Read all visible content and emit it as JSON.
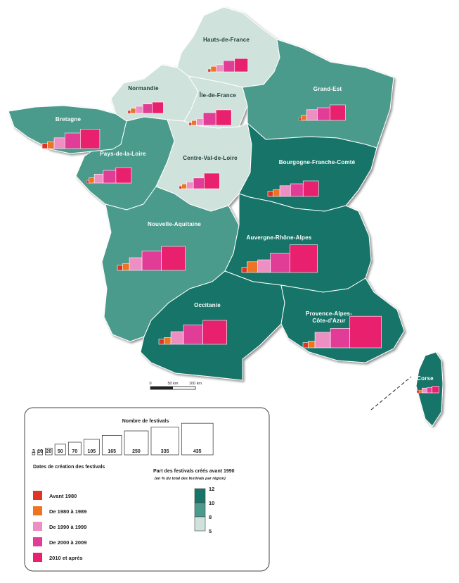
{
  "colors": {
    "c12": "#187468",
    "c10": "#4b9b8c",
    "c8": "#cfe3dc",
    "date": [
      "#e03426",
      "#ee7424",
      "#ee8fc4",
      "#e23d96",
      "#e8206e"
    ],
    "border": "#ffffff"
  },
  "regions": [
    {
      "id": "hauts-de-france",
      "name": "Hauts-de-France",
      "share_class": 8,
      "counts": [
        3,
        12,
        20,
        50,
        70
      ]
    },
    {
      "id": "normandie",
      "name": "Normandie",
      "share_class": 8,
      "counts": [
        3,
        10,
        20,
        35,
        50
      ]
    },
    {
      "id": "ile-de-france",
      "name": "Île-de-France",
      "share_class": 8,
      "counts": [
        3,
        10,
        20,
        70,
        105
      ]
    },
    {
      "id": "grand-est",
      "name": "Grand-Est",
      "share_class": 10,
      "counts": [
        3,
        12,
        50,
        70,
        105
      ]
    },
    {
      "id": "bretagne",
      "name": "Bretagne",
      "share_class": 10,
      "counts": [
        12,
        20,
        50,
        105,
        165
      ]
    },
    {
      "id": "pays-de-la-loire",
      "name": "Pays-de-la-Loire",
      "share_class": 10,
      "counts": [
        3,
        12,
        35,
        70,
        105
      ]
    },
    {
      "id": "centre-val-de-loire",
      "name": "Centre-Val-de-Loire",
      "share_class": 8,
      "counts": [
        3,
        10,
        20,
        50,
        105
      ]
    },
    {
      "id": "bourgogne-franche-comte",
      "name": "Bourgogne-Franche-Comté",
      "share_class": 12,
      "counts": [
        12,
        20,
        50,
        70,
        105
      ]
    },
    {
      "id": "nouvelle-aquitaine",
      "name": "Nouvelle-Aquitaine",
      "share_class": 10,
      "counts": [
        12,
        20,
        70,
        165,
        250
      ]
    },
    {
      "id": "auvergne-rhone-alpes",
      "name": "Auvergne-Rhône-Alpes",
      "share_class": 12,
      "counts": [
        12,
        50,
        70,
        165,
        335
      ]
    },
    {
      "id": "occitanie",
      "name": "Occitanie",
      "share_class": 12,
      "counts": [
        12,
        20,
        70,
        165,
        250
      ]
    },
    {
      "id": "provence-alpes-cote-dazur",
      "name": "Provence-Alpes-\nCôte-d'Azur",
      "share_class": 12,
      "counts": [
        12,
        20,
        105,
        165,
        435
      ]
    },
    {
      "id": "corse",
      "name": "Corse",
      "share_class": 12,
      "counts": [
        3,
        3,
        10,
        12,
        20
      ]
    }
  ],
  "scale_bar": {
    "labels": [
      "0",
      "50 km",
      "100 km"
    ]
  },
  "legend": {
    "size_title": "Nombre de festivals",
    "sizes": [
      3,
      10,
      20,
      50,
      70,
      105,
      165,
      250,
      335,
      435
    ],
    "dates_title": "Dates de création des festivals",
    "dates": [
      "Avant 1980",
      "De 1980 à 1989",
      "De 1990 à 1999",
      "De 2000 à 2009",
      "2010 et après"
    ],
    "share_title": "Part des festivals créés avant 1990",
    "share_subtitle": "(en % du total des festivals par région)",
    "share_breaks": [
      "12",
      "10",
      "8",
      "5"
    ]
  }
}
